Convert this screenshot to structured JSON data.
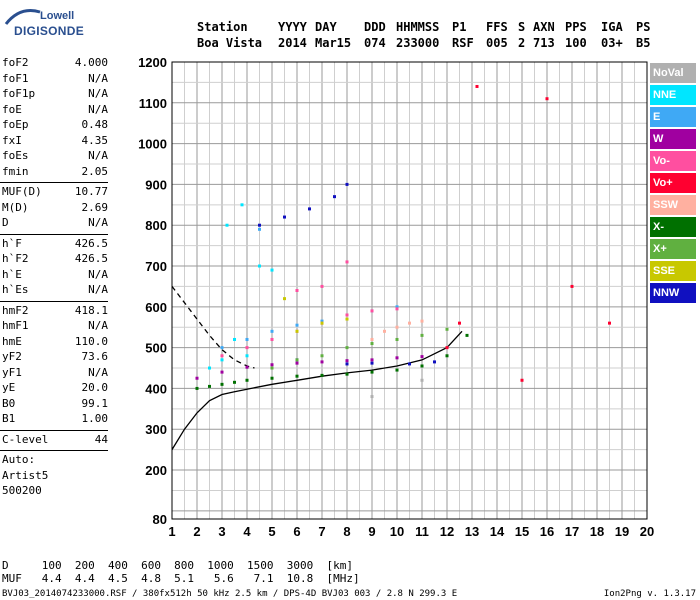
{
  "logo": {
    "line1": "Lowell",
    "line2": "DIGISONDE"
  },
  "header": {
    "row1": [
      "Station",
      "YYYY",
      "DAY",
      "DDD",
      "HHMMSS",
      "P1",
      "FFS",
      "S",
      "AXN",
      "PPS",
      "IGA",
      "PS"
    ],
    "row2": [
      "Boa Vista",
      "2014",
      "Mar15",
      "074",
      "233000",
      "RSF",
      "005",
      "2",
      "713",
      "100",
      "03+",
      "B5"
    ]
  },
  "params": [
    [
      {
        "k": "foF2",
        "v": "4.000"
      },
      {
        "k": "foF1",
        "v": "N/A"
      },
      {
        "k": "foF1p",
        "v": "N/A"
      },
      {
        "k": "foE",
        "v": "N/A"
      },
      {
        "k": "foEp",
        "v": "0.48"
      },
      {
        "k": "fxI",
        "v": "4.35"
      },
      {
        "k": "foEs",
        "v": "N/A"
      },
      {
        "k": "fmin",
        "v": "2.05"
      }
    ],
    [
      {
        "k": "MUF(D)",
        "v": "10.77"
      },
      {
        "k": "M(D)",
        "v": "2.69"
      },
      {
        "k": "D",
        "v": "N/A"
      }
    ],
    [
      {
        "k": "h`F",
        "v": "426.5"
      },
      {
        "k": "h`F2",
        "v": "426.5"
      },
      {
        "k": "h`E",
        "v": "N/A"
      },
      {
        "k": "h`Es",
        "v": "N/A"
      }
    ],
    [
      {
        "k": "hmF2",
        "v": "418.1"
      },
      {
        "k": "hmF1",
        "v": "N/A"
      },
      {
        "k": "hmE",
        "v": "110.0"
      },
      {
        "k": "yF2",
        "v": "73.6"
      },
      {
        "k": "yF1",
        "v": "N/A"
      },
      {
        "k": "yE",
        "v": "20.0"
      },
      {
        "k": "B0",
        "v": "99.1"
      },
      {
        "k": "B1",
        "v": "1.00"
      }
    ],
    [
      {
        "k": "C-level",
        "v": "44"
      }
    ],
    [
      {
        "k": "Auto:",
        "v": ""
      },
      {
        "k": "Artist5",
        "v": ""
      },
      {
        "k": "500200",
        "v": ""
      }
    ]
  ],
  "legend": [
    {
      "label": "NoVal",
      "color": "#b0b0b0"
    },
    {
      "label": "NNE",
      "color": "#00e6ff"
    },
    {
      "label": "E",
      "color": "#3fa9f5"
    },
    {
      "label": "W",
      "color": "#a000a0"
    },
    {
      "label": "Vo-",
      "color": "#ff4fa0"
    },
    {
      "label": "Vo+",
      "color": "#ff0030"
    },
    {
      "label": "SSW",
      "color": "#ffb0a0"
    },
    {
      "label": "X-",
      "color": "#007000"
    },
    {
      "label": "X+",
      "color": "#60b040"
    },
    {
      "label": "SSE",
      "color": "#c8c800"
    },
    {
      "label": "NNW",
      "color": "#1010c0"
    }
  ],
  "footer": {
    "line1": "D     100  200  400  600  800  1000  1500  3000  [km]",
    "line2": "MUF   4.4  4.4  4.5  4.8  5.1   5.6   7.1  10.8  [MHz]",
    "line3": "BVJ03_2014074233000.RSF / 380fx512h 50 kHz 2.5 km / DPS-4D BVJ03 003 / 2.8 N 299.3 E",
    "version": "Ion2Png v. 1.3.17"
  },
  "chart_data": {
    "type": "scatter",
    "xlim": [
      1,
      20
    ],
    "ylim": [
      80,
      1200
    ],
    "x_ticks": [
      1,
      2,
      3,
      4,
      5,
      6,
      7,
      8,
      9,
      10,
      11,
      12,
      13,
      14,
      15,
      16,
      17,
      18,
      19,
      20
    ],
    "y_ticks": [
      80,
      200,
      300,
      400,
      500,
      600,
      700,
      800,
      900,
      1000,
      1100,
      1200
    ],
    "grid": true,
    "legend_position": "right",
    "series": [
      {
        "name": "X-",
        "color": "#007000",
        "points": [
          [
            2.0,
            400
          ],
          [
            2.5,
            405
          ],
          [
            3.0,
            410
          ],
          [
            3.5,
            415
          ],
          [
            4.0,
            420
          ],
          [
            5.0,
            425
          ],
          [
            6.0,
            430
          ],
          [
            7.0,
            432
          ],
          [
            8.0,
            435
          ],
          [
            9.0,
            440
          ],
          [
            10.0,
            445
          ],
          [
            11.0,
            455
          ],
          [
            12.0,
            480
          ],
          [
            12.8,
            530
          ]
        ]
      },
      {
        "name": "W",
        "color": "#a000a0",
        "points": [
          [
            2.0,
            425
          ],
          [
            3.0,
            440
          ],
          [
            4.0,
            452
          ],
          [
            5.0,
            458
          ],
          [
            6.0,
            462
          ],
          [
            7.0,
            465
          ],
          [
            8.0,
            468
          ],
          [
            9.0,
            470
          ],
          [
            10.0,
            475
          ],
          [
            11.0,
            478
          ]
        ]
      },
      {
        "name": "NNW",
        "color": "#1010c0",
        "points": [
          [
            4.5,
            800
          ],
          [
            5.5,
            820
          ],
          [
            6.5,
            840
          ],
          [
            7.5,
            870
          ],
          [
            8.0,
            900
          ],
          [
            6.0,
            470
          ],
          [
            8.0,
            460
          ],
          [
            9.0,
            462
          ],
          [
            10.5,
            460
          ],
          [
            11.5,
            465
          ]
        ]
      },
      {
        "name": "NNE",
        "color": "#00e6ff",
        "points": [
          [
            2.5,
            450
          ],
          [
            3.0,
            470
          ],
          [
            3.5,
            520
          ],
          [
            4.0,
            480
          ],
          [
            4.5,
            700
          ],
          [
            5.0,
            690
          ],
          [
            3.2,
            800
          ],
          [
            3.8,
            850
          ]
        ]
      },
      {
        "name": "E",
        "color": "#3fa9f5",
        "points": [
          [
            3.0,
            500
          ],
          [
            4.0,
            520
          ],
          [
            5.0,
            540
          ],
          [
            6.0,
            555
          ],
          [
            7.0,
            565
          ],
          [
            8.0,
            580
          ],
          [
            9.0,
            590
          ],
          [
            10.0,
            600
          ],
          [
            4.5,
            790
          ]
        ]
      },
      {
        "name": "Vo-",
        "color": "#ff4fa0",
        "points": [
          [
            3.0,
            480
          ],
          [
            4.0,
            500
          ],
          [
            5.0,
            520
          ],
          [
            6.0,
            540
          ],
          [
            7.0,
            560
          ],
          [
            8.0,
            580
          ],
          [
            9.0,
            590
          ],
          [
            10.0,
            595
          ],
          [
            6.0,
            640
          ],
          [
            7.0,
            650
          ],
          [
            8.0,
            710
          ]
        ]
      },
      {
        "name": "Vo+",
        "color": "#ff0030",
        "points": [
          [
            12.5,
            560
          ],
          [
            13.2,
            1140
          ],
          [
            15.0,
            420
          ],
          [
            16.0,
            1110
          ],
          [
            17.0,
            650
          ],
          [
            18.5,
            560
          ],
          [
            12.0,
            500
          ]
        ]
      },
      {
        "name": "SSW",
        "color": "#ffb0a0",
        "points": [
          [
            9.5,
            540
          ],
          [
            10.0,
            550
          ],
          [
            10.5,
            560
          ],
          [
            11.0,
            565
          ],
          [
            9.0,
            520
          ]
        ]
      },
      {
        "name": "X+",
        "color": "#60b040",
        "points": [
          [
            5.0,
            450
          ],
          [
            6.0,
            470
          ],
          [
            7.0,
            480
          ],
          [
            8.0,
            500
          ],
          [
            9.0,
            510
          ],
          [
            10.0,
            520
          ],
          [
            11.0,
            530
          ],
          [
            12.0,
            545
          ]
        ]
      },
      {
        "name": "SSE",
        "color": "#c8c800",
        "points": [
          [
            6.0,
            540
          ],
          [
            7.0,
            560
          ],
          [
            8.0,
            570
          ],
          [
            5.5,
            620
          ]
        ]
      },
      {
        "name": "NoVal",
        "color": "#b0b0b0",
        "points": [
          [
            9.0,
            380
          ],
          [
            11.0,
            420
          ]
        ]
      }
    ],
    "fit_curve": [
      [
        1.0,
        250
      ],
      [
        1.5,
        300
      ],
      [
        2.0,
        340
      ],
      [
        2.5,
        370
      ],
      [
        3.0,
        385
      ],
      [
        3.5,
        392
      ],
      [
        4.0,
        398
      ],
      [
        5.0,
        410
      ],
      [
        6.0,
        420
      ],
      [
        7.0,
        430
      ],
      [
        8.0,
        438
      ],
      [
        9.0,
        445
      ],
      [
        10.0,
        455
      ],
      [
        11.0,
        470
      ],
      [
        12.0,
        500
      ],
      [
        12.6,
        540
      ]
    ],
    "profile_curve": [
      [
        1.0,
        650
      ],
      [
        1.5,
        610
      ],
      [
        2.0,
        570
      ],
      [
        2.5,
        530
      ],
      [
        3.0,
        495
      ],
      [
        3.5,
        470
      ],
      [
        4.0,
        455
      ],
      [
        4.3,
        450
      ]
    ]
  }
}
